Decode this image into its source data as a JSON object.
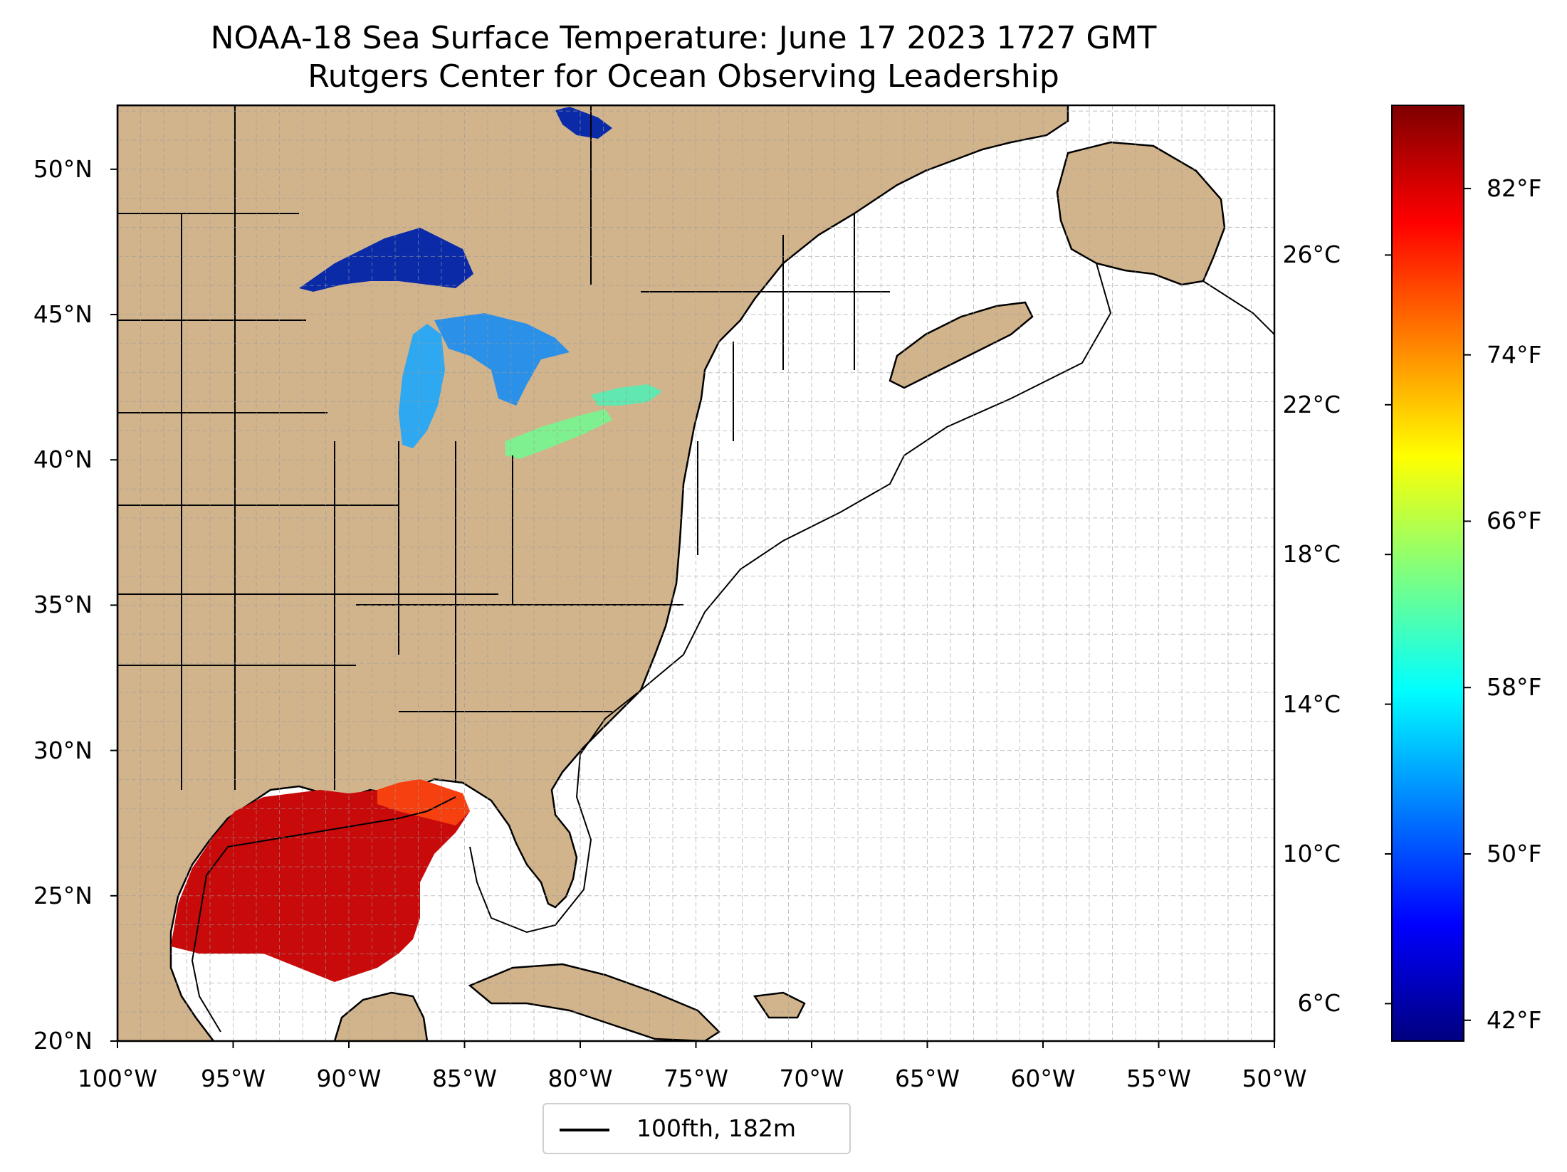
{
  "title": "NOAA-18 Sea Surface Temperature: June 17 2023 1727 GMT",
  "subtitle": "Rutgers Center for Ocean Observing Leadership",
  "map": {
    "lat_ticks": [
      "20°N",
      "25°N",
      "30°N",
      "35°N",
      "40°N",
      "45°N",
      "50°N"
    ],
    "lon_ticks": [
      "100°W",
      "95°W",
      "90°W",
      "85°W",
      "80°W",
      "75°W",
      "70°W",
      "65°W",
      "60°W",
      "55°W",
      "50°W"
    ],
    "lat_range": [
      20,
      52.2
    ],
    "lon_range": [
      -100,
      -50
    ],
    "gridlines": "dashed, 1° spacing",
    "land_color": "#d2b48c",
    "ocean_color": "#ffffff",
    "lake_color": "#9ab8e6",
    "border_color": "#000000"
  },
  "colorbar": {
    "celsius_ticks": [
      "6°C",
      "10°C",
      "14°C",
      "18°C",
      "22°C",
      "26°C"
    ],
    "fahrenheit_ticks": [
      "42°F",
      "50°F",
      "58°F",
      "66°F",
      "74°F",
      "82°F"
    ],
    "colormap": "jet",
    "range_c": [
      5.0,
      30.0
    ],
    "colors": [
      "#00007f",
      "#0000ff",
      "#007fff",
      "#00ffff",
      "#7fff7f",
      "#ffff00",
      "#ff7f00",
      "#ff0000",
      "#7f0000"
    ]
  },
  "legend": {
    "label": "100fth, 182m"
  }
}
